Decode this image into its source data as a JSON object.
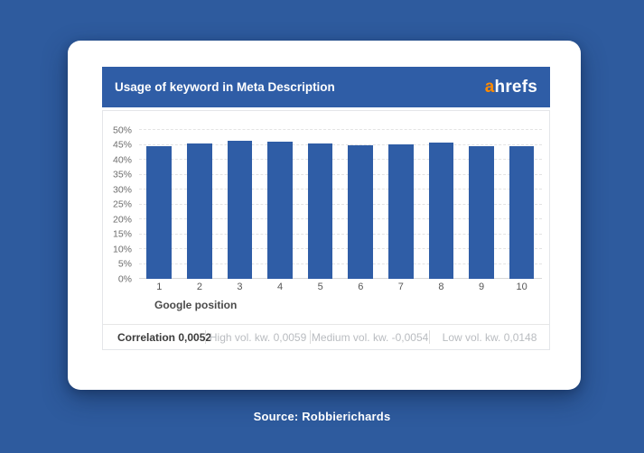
{
  "page": {
    "background_color": "#2e5b9e",
    "source_label": "Source: Robbierichards"
  },
  "card": {
    "header": {
      "title": "Usage of keyword in Meta Description",
      "background_color": "#2f5da6",
      "logo": {
        "prefix": "a",
        "suffix": "hrefs",
        "prefix_color": "#ff8a00"
      }
    },
    "footer": {
      "items": [
        {
          "label": "Correlation 0,0052",
          "emphasis": true
        },
        {
          "label": "High vol. kw. 0,0059",
          "emphasis": false
        },
        {
          "label": "Medium vol. kw. -0,0054",
          "emphasis": false
        },
        {
          "label": "Low vol. kw. 0,0148",
          "emphasis": false
        }
      ]
    }
  },
  "chart_data": {
    "type": "bar",
    "title": "Usage of keyword in Meta Description",
    "categories": [
      "1",
      "2",
      "3",
      "4",
      "5",
      "6",
      "7",
      "8",
      "9",
      "10"
    ],
    "values": [
      44.6,
      45.5,
      46.4,
      46.1,
      45.5,
      44.8,
      45.1,
      45.9,
      44.4,
      44.6
    ],
    "xlabel": "Google position",
    "ylabel": "",
    "ylim": [
      0,
      50
    ],
    "ytick_step": 5,
    "ytick_suffix": "%",
    "bar_color": "#2f5da6",
    "grid": true,
    "gridline_style": "dashed",
    "legend_position": "none",
    "annotations": [
      "Correlation 0,0052",
      "High vol. kw. 0,0059",
      "Medium vol. kw. -0,0054",
      "Low vol. kw. 0,0148"
    ]
  }
}
